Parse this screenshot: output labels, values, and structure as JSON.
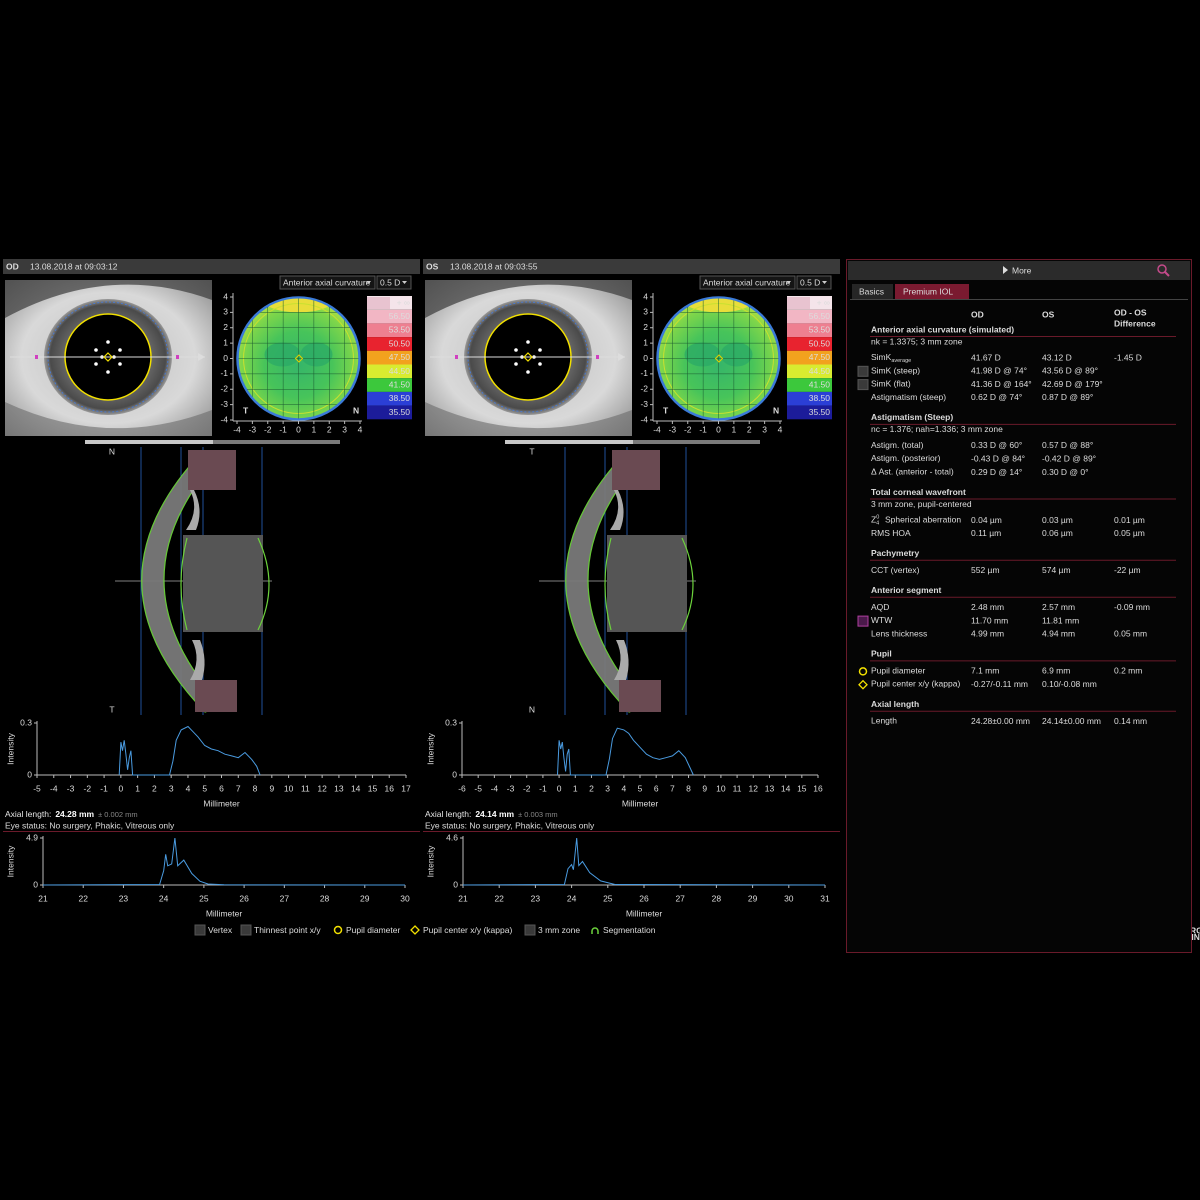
{
  "eyes": {
    "od": {
      "header": {
        "eye": "OD",
        "date": "13.08.2018 at 09:03:12"
      },
      "map_controls": {
        "mode": "Anterior axial curvature",
        "step": "0.5 D"
      },
      "topography": {
        "xlim": [
          -4,
          4
        ],
        "ylim": [
          -4,
          4
        ],
        "xticks": [
          -4,
          -3,
          -2,
          -1,
          0,
          1,
          2,
          3,
          4
        ],
        "yticks": [
          -4,
          -3,
          -2,
          -1,
          0,
          1,
          2,
          3,
          4
        ],
        "labels": [
          "T",
          "N"
        ]
      },
      "scale": {
        "labels": [
          "+ ∞",
          "56.50",
          "53.50",
          "50.50",
          "47.50",
          "44.50",
          "41.50",
          "38.50",
          "35.50"
        ],
        "colors": [
          "#f4e4ea",
          "#f2b6c4",
          "#ee7f90",
          "#e8232f",
          "#f2a21e",
          "#d8ec30",
          "#3cc83c",
          "#2b3fd6",
          "#1c1c9a"
        ]
      },
      "oct_labels": [
        "N",
        "T"
      ],
      "intensity_chart": {
        "type": "line",
        "ylabel": "Intensity",
        "xlabel": "Millimeter",
        "xlim": [
          -5,
          17
        ],
        "ylim": [
          0,
          0.3
        ],
        "xticks": [
          -5,
          -4,
          -3,
          -2,
          -1,
          0,
          1,
          2,
          3,
          4,
          5,
          6,
          7,
          8,
          9,
          10,
          11,
          12,
          13,
          14,
          15,
          16,
          17
        ],
        "yticks": [
          0,
          0.3
        ],
        "series": [
          {
            "color": "#4a9be0",
            "x": [
              -0.1,
              0,
              0.1,
              0.2,
              0.3,
              0.4,
              0.5,
              0.6,
              0.7,
              2.9,
              3.1,
              3.3,
              3.6,
              4.0,
              4.3,
              4.6,
              5.0,
              5.4,
              5.8,
              6.2,
              6.6,
              7.0,
              7.4,
              7.8,
              8.1,
              8.3
            ],
            "values": [
              0,
              0.19,
              0.14,
              0.2,
              0.12,
              0.03,
              0.1,
              0.14,
              0,
              0,
              0.08,
              0.2,
              0.26,
              0.28,
              0.25,
              0.22,
              0.17,
              0.15,
              0.14,
              0.12,
              0.11,
              0.1,
              0.13,
              0.09,
              0.05,
              0
            ]
          }
        ]
      },
      "axial_length": {
        "label": "Axial length:",
        "value": "24.28 mm",
        "tolerance": "± 0.002 mm"
      },
      "eye_status": "Eye status: No surgery, Phakic, Vitreous only",
      "axial_chart": {
        "type": "line",
        "ylabel": "Intensity",
        "xlabel": "Millimeter",
        "xlim": [
          21,
          30
        ],
        "ylim": [
          0,
          4.9
        ],
        "xticks": [
          21,
          22,
          23,
          24,
          25,
          26,
          27,
          28,
          29,
          30
        ],
        "yticks": [
          0,
          4.9
        ],
        "series": [
          {
            "color": "#4a9be0",
            "x": [
              21,
              23.9,
              24.0,
              24.05,
              24.1,
              24.2,
              24.28,
              24.35,
              24.5,
              24.7,
              24.9,
              25.1,
              25.5,
              30
            ],
            "values": [
              0,
              0.05,
              1.5,
              3.2,
              2.0,
              2.2,
              4.9,
              2.0,
              2.6,
              1.2,
              0.4,
              0.1,
              0.02,
              0
            ]
          }
        ]
      }
    },
    "os": {
      "header": {
        "eye": "OS",
        "date": "13.08.2018 at 09:03:55"
      },
      "map_controls": {
        "mode": "Anterior axial curvature",
        "step": "0.5 D"
      },
      "topography": {
        "xlim": [
          -4,
          4
        ],
        "ylim": [
          -4,
          4
        ],
        "xticks": [
          -4,
          -3,
          -2,
          -1,
          0,
          1,
          2,
          3,
          4
        ],
        "yticks": [
          -4,
          -3,
          -2,
          -1,
          0,
          1,
          2,
          3,
          4
        ],
        "labels": [
          "T",
          "N"
        ]
      },
      "scale": {
        "labels": [
          "+ ∞",
          "56.50",
          "53.50",
          "50.50",
          "47.50",
          "44.50",
          "41.50",
          "38.50",
          "35.50"
        ],
        "colors": [
          "#f4e4ea",
          "#f2b6c4",
          "#ee7f90",
          "#e8232f",
          "#f2a21e",
          "#d8ec30",
          "#3cc83c",
          "#2b3fd6",
          "#1c1c9a"
        ]
      },
      "oct_labels": [
        "T",
        "N"
      ],
      "intensity_chart": {
        "type": "line",
        "ylabel": "Intensity",
        "xlabel": "Millimeter",
        "xlim": [
          -6,
          16
        ],
        "ylim": [
          0,
          0.3
        ],
        "xticks": [
          -6,
          -5,
          -4,
          -3,
          -2,
          -1,
          0,
          1,
          2,
          3,
          4,
          5,
          6,
          7,
          8,
          9,
          10,
          11,
          12,
          13,
          14,
          15,
          16
        ],
        "yticks": [
          0,
          0.3
        ],
        "series": [
          {
            "color": "#4a9be0",
            "x": [
              -0.1,
              0,
              0.1,
              0.2,
              0.3,
              0.4,
              0.5,
              0.6,
              0.7,
              2.9,
              3.1,
              3.3,
              3.6,
              4.0,
              4.3,
              4.6,
              5.0,
              5.4,
              5.8,
              6.2,
              6.6,
              7.0,
              7.4,
              7.8,
              8.1,
              8.3
            ],
            "values": [
              0,
              0.2,
              0.15,
              0.19,
              0.1,
              0.02,
              0.12,
              0.15,
              0,
              0,
              0.09,
              0.21,
              0.27,
              0.26,
              0.24,
              0.2,
              0.16,
              0.12,
              0.1,
              0.09,
              0.1,
              0.11,
              0.14,
              0.1,
              0.04,
              0
            ]
          }
        ]
      },
      "axial_length": {
        "label": "Axial length:",
        "value": "24.14 mm",
        "tolerance": "± 0.003 mm"
      },
      "eye_status": "Eye status: No surgery, Phakic, Vitreous only",
      "axial_chart": {
        "type": "line",
        "ylabel": "Intensity",
        "xlabel": "Millimeter",
        "xlim": [
          21,
          31
        ],
        "ylim": [
          0,
          4.6
        ],
        "xticks": [
          21,
          22,
          23,
          24,
          25,
          26,
          27,
          28,
          29,
          30,
          31
        ],
        "yticks": [
          0,
          4.6
        ],
        "series": [
          {
            "color": "#4a9be0",
            "x": [
              21,
              23.8,
              23.9,
              24.0,
              24.05,
              24.14,
              24.2,
              24.3,
              24.5,
              24.8,
              25.2,
              31
            ],
            "values": [
              0,
              0.05,
              1.6,
              2.0,
              1.5,
              4.6,
              1.9,
              2.3,
              1.2,
              0.4,
              0.05,
              0
            ]
          }
        ]
      }
    }
  },
  "legend": {
    "items": [
      "Vertex",
      "Thinnest point x/y",
      "Pupil diameter",
      "Pupil center x/y (kappa)",
      "3 mm zone",
      "Segmentation"
    ]
  },
  "logo": [
    "HEIDELBERG",
    "ENGINEERING"
  ],
  "panel": {
    "more": "More",
    "tabs": [
      "Basics",
      "Premium IOL"
    ],
    "columns": [
      "OD",
      "OS"
    ],
    "diff_header": [
      "OD - OS",
      "Difference"
    ],
    "sections": [
      {
        "title": "Anterior axial curvature (simulated)",
        "note": "nk = 1.3375; 3 mm zone",
        "rows": [
          {
            "label": "SimK",
            "sub": "average",
            "od": "41.67 D",
            "os": "43.12 D",
            "diff": "-1.45 D"
          },
          {
            "label": "SimK (steep)",
            "od": "41.98 D @ 74°",
            "os": "43.56 D @ 89°"
          },
          {
            "label": "SimK (flat)",
            "od": "41.36 D @ 164°",
            "os": "42.69 D @ 179°"
          },
          {
            "label": "Astigmatism (steep)",
            "od": "0.62 D @ 74°",
            "os": "0.87 D @ 89°"
          }
        ]
      },
      {
        "title": "Astigmatism (Steep)",
        "note": "nc = 1.376; nah=1.336; 3 mm zone",
        "rows": [
          {
            "label": "Astigm. (total)",
            "od": "0.33 D @ 60°",
            "os": "0.57 D @ 88°"
          },
          {
            "label": "Astigm. (posterior)",
            "od": "-0.43 D @ 84°",
            "os": "-0.42 D @ 89°"
          },
          {
            "label": "Δ Ast. (anterior - total)",
            "od": "0.29 D @ 14°",
            "os": "0.30 D @ 0°"
          }
        ]
      },
      {
        "title": "Total corneal wavefront",
        "note": "3 mm zone, pupil-centered",
        "rows": [
          {
            "symbol": {
              "base": "Z",
              "sup": "0",
              "sub": "4"
            },
            "label": "Spherical aberration",
            "od": "0.04 µm",
            "os": "0.03 µm",
            "diff": "0.01 µm"
          },
          {
            "label": "RMS HOA",
            "od": "0.11 µm",
            "os": "0.06 µm",
            "diff": "0.05 µm"
          }
        ]
      },
      {
        "title": "Pachymetry",
        "rows": [
          {
            "label": "CCT (vertex)",
            "od": "552 µm",
            "os": "574 µm",
            "diff": "-22 µm"
          }
        ]
      },
      {
        "title": "Anterior segment",
        "rows": [
          {
            "label": "AQD",
            "od": "2.48 mm",
            "os": "2.57 mm",
            "diff": "-0.09 mm"
          },
          {
            "label": "WTW",
            "od": "11.70 mm",
            "os": "11.81 mm"
          },
          {
            "label": "Lens thickness",
            "od": "4.99 mm",
            "os": "4.94 mm",
            "diff": "0.05 mm"
          }
        ]
      },
      {
        "title": "Pupil",
        "rows": [
          {
            "label": "Pupil diameter",
            "od": "7.1 mm",
            "os": "6.9 mm",
            "diff": "0.2 mm"
          },
          {
            "label": "Pupil center x/y (kappa)",
            "od": "-0.27/-0.11 mm",
            "os": "0.10/-0.08 mm"
          }
        ]
      },
      {
        "title": "Axial length",
        "rows": [
          {
            "label": "Length",
            "od": "24.28±0.00 mm",
            "os": "24.14±0.00 mm",
            "diff": "0.14 mm"
          }
        ]
      }
    ]
  }
}
